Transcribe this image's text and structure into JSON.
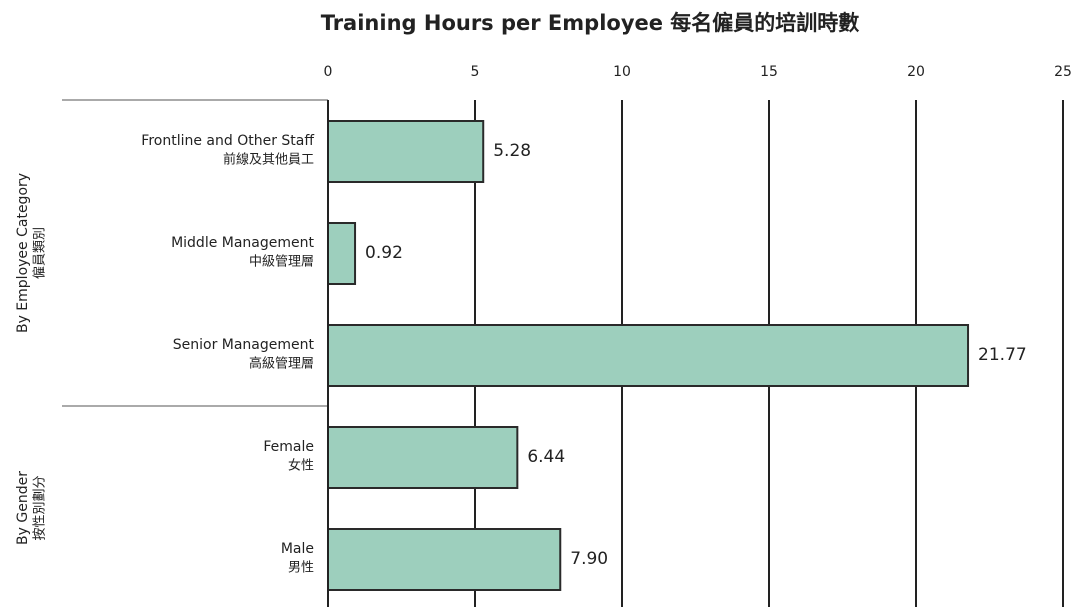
{
  "chart_data": {
    "type": "bar",
    "orientation": "horizontal",
    "title": "Training Hours per Employee 每名僱員的培訓時數",
    "color": "#9dcfbd",
    "grid": true,
    "xlim": [
      0,
      25
    ],
    "xticks": [
      0,
      5,
      10,
      15,
      20,
      25
    ],
    "groups": [
      {
        "name": [
          "By Employee Category",
          "僱員類別"
        ],
        "categories": [
          [
            "Frontline and Other Staff",
            "前線及其他員工"
          ],
          [
            "Middle Management",
            "中級管理層"
          ],
          [
            "Senior Management",
            "高級管理層"
          ]
        ],
        "values": [
          5.28,
          0.92,
          21.77
        ],
        "value_labels": [
          "5.28",
          "0.92",
          "21.77"
        ]
      },
      {
        "name": [
          "By Gender",
          "按性別劃分"
        ],
        "categories": [
          [
            "Female",
            "女性"
          ],
          [
            "Male",
            "男性"
          ]
        ],
        "values": [
          6.44,
          7.9
        ],
        "value_labels": [
          "6.44",
          "7.90"
        ]
      }
    ]
  }
}
